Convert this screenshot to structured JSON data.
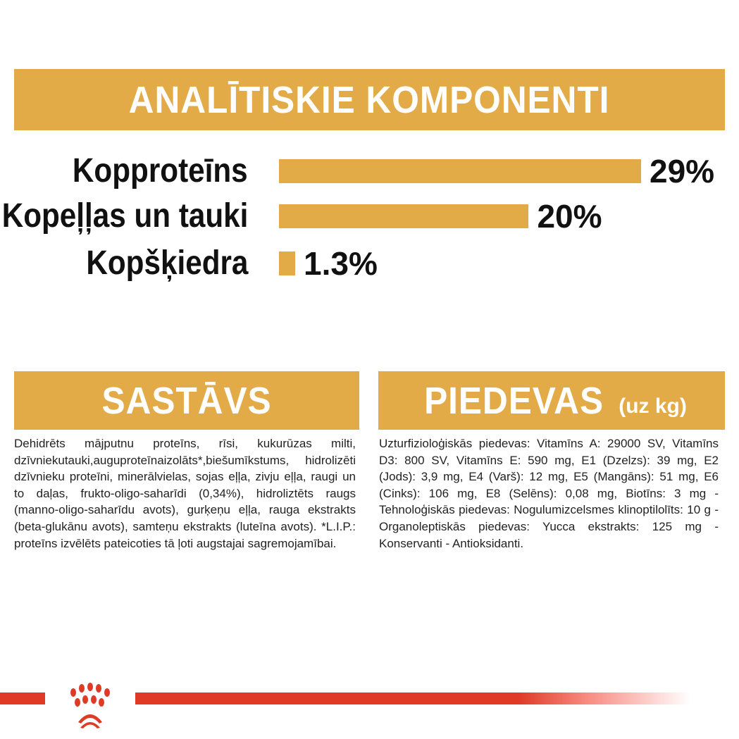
{
  "header": {
    "title": "ANALĪTISKIE KOMPONENTI"
  },
  "components": [
    {
      "label": "Kopproteīns",
      "value": "29%",
      "percent": 29
    },
    {
      "label": "Kopeļļas un tauki",
      "value": "20%",
      "percent": 20
    },
    {
      "label": "Kopšķiedra",
      "value": "1.3%",
      "percent": 1.3
    }
  ],
  "composition": {
    "title": "SASTĀVS",
    "text": "Dehidrēts mājputnu proteīns, rīsi, kukurūzas milti, dzīvniekutauki,auguproteīnaizolāts*,biešumīkstums, hidrolizēti dzīvnieku proteīni, minerālvielas, sojas eļļa, zivju eļļa, raugi un to daļas, frukto-oligo-saharīdi (0,34%), hidroliztēts raugs (manno-oligo-saharīdu avots), gurķeņu eļļa, rauga ekstrakts (beta-glukānu avots), samteņu ekstrakts (luteīna avots). *L.I.P.: proteīns izvēlēts pateicoties tā ļoti augstajai sagremojamībai."
  },
  "additives": {
    "title": "PIEDEVAS",
    "subtitle": "(uz kg)",
    "text": "Uzturfizioloģiskās piedevas: Vitamīns A: 29000 SV, Vitamīns D3: 800 SV, Vitamīns E: 590 mg, E1 (Dzelzs): 39 mg, E2 (Jods): 3,9 mg, E4 (Varš): 12 mg, E5 (Mangāns): 51 mg, E6 (Cinks): 106 mg, E8 (Selēns): 0,08 mg, Biotīns: 3 mg - Tehnoloģiskās piedevas: Nogulumizcelsmes klinoptilolīts: 10 g - Organoleptiskās piedevas: Yucca ekstrakts: 125 mg - Konservanti - Antioksidanti."
  },
  "colors": {
    "accent": "#e3ab47",
    "brand_red": "#de3a26"
  }
}
